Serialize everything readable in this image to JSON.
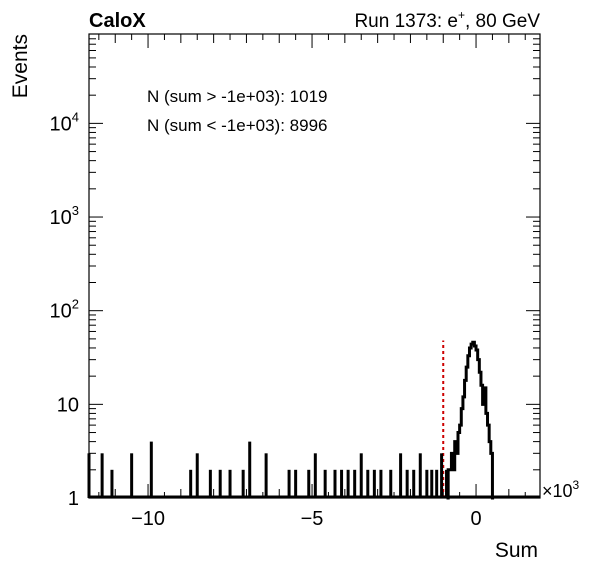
{
  "chart_data": {
    "type": "histogram",
    "title_left": "CaloX",
    "title_right_prefix": "Run 1373: e",
    "title_right_sup": "+",
    "title_right_suffix": ", 80 GeV",
    "xlabel": "Sum",
    "ylabel": "Events",
    "x_multiplier": "×10",
    "x_multiplier_exp": "3",
    "xlim": [
      -11.8,
      1.95
    ],
    "ylim_log": [
      1,
      90000
    ],
    "y_scale": "log",
    "x_ticks": [
      {
        "value": -10,
        "label": "−10"
      },
      {
        "value": -5,
        "label": "−5"
      },
      {
        "value": 0,
        "label": "0"
      }
    ],
    "y_ticks": [
      {
        "value": 1,
        "base": "1",
        "exp": ""
      },
      {
        "value": 10,
        "base": "10",
        "exp": ""
      },
      {
        "value": 100,
        "base": "10",
        "exp": "2"
      },
      {
        "value": 1000,
        "base": "10",
        "exp": "3"
      },
      {
        "value": 10000,
        "base": "10",
        "exp": "4"
      }
    ],
    "annotations": [
      "N (sum > -1e+03): 1019",
      "N (sum < -1e+03): 8996"
    ],
    "cut_line": {
      "x": -1.0,
      "y_top": 48,
      "color": "#cc0000",
      "style": "dashed"
    },
    "line_color": "#000000",
    "spikes": [
      {
        "x": -11.8,
        "y": 3
      },
      {
        "x": -11.4,
        "y": 3
      },
      {
        "x": -11.1,
        "y": 2
      },
      {
        "x": -10.5,
        "y": 3
      },
      {
        "x": -9.9,
        "y": 4
      },
      {
        "x": -8.7,
        "y": 2
      },
      {
        "x": -8.5,
        "y": 3
      },
      {
        "x": -8.1,
        "y": 2
      },
      {
        "x": -7.8,
        "y": 2
      },
      {
        "x": -7.5,
        "y": 2
      },
      {
        "x": -7.1,
        "y": 2
      },
      {
        "x": -6.9,
        "y": 4
      },
      {
        "x": -6.4,
        "y": 3
      },
      {
        "x": -5.7,
        "y": 2
      },
      {
        "x": -5.5,
        "y": 2
      },
      {
        "x": -5.1,
        "y": 2
      },
      {
        "x": -4.9,
        "y": 3
      },
      {
        "x": -4.6,
        "y": 2
      },
      {
        "x": -4.3,
        "y": 2
      },
      {
        "x": -4.1,
        "y": 2
      },
      {
        "x": -3.9,
        "y": 2
      },
      {
        "x": -3.7,
        "y": 2
      },
      {
        "x": -3.5,
        "y": 3
      },
      {
        "x": -3.3,
        "y": 2
      },
      {
        "x": -3.1,
        "y": 2
      },
      {
        "x": -2.9,
        "y": 2
      },
      {
        "x": -2.6,
        "y": 2
      },
      {
        "x": -2.3,
        "y": 3
      },
      {
        "x": -2.1,
        "y": 2
      },
      {
        "x": -1.9,
        "y": 2
      },
      {
        "x": -1.7,
        "y": 3
      },
      {
        "x": -1.5,
        "y": 2
      },
      {
        "x": -1.35,
        "y": 2
      },
      {
        "x": -1.2,
        "y": 2
      },
      {
        "x": -1.05,
        "y": 3
      },
      {
        "x": -0.9,
        "y": 2
      }
    ],
    "peak": [
      {
        "x": -0.9,
        "y": 1
      },
      {
        "x": -0.85,
        "y": 2
      },
      {
        "x": -0.8,
        "y": 2
      },
      {
        "x": -0.75,
        "y": 3
      },
      {
        "x": -0.7,
        "y": 2
      },
      {
        "x": -0.65,
        "y": 4
      },
      {
        "x": -0.6,
        "y": 3
      },
      {
        "x": -0.55,
        "y": 5
      },
      {
        "x": -0.5,
        "y": 6
      },
      {
        "x": -0.45,
        "y": 9
      },
      {
        "x": -0.4,
        "y": 12
      },
      {
        "x": -0.35,
        "y": 18
      },
      {
        "x": -0.3,
        "y": 25
      },
      {
        "x": -0.25,
        "y": 33
      },
      {
        "x": -0.2,
        "y": 40
      },
      {
        "x": -0.15,
        "y": 44
      },
      {
        "x": -0.1,
        "y": 46
      },
      {
        "x": -0.05,
        "y": 42
      },
      {
        "x": 0.0,
        "y": 38
      },
      {
        "x": 0.05,
        "y": 30
      },
      {
        "x": 0.1,
        "y": 22
      },
      {
        "x": 0.15,
        "y": 16
      },
      {
        "x": 0.2,
        "y": 10
      },
      {
        "x": 0.25,
        "y": 15
      },
      {
        "x": 0.3,
        "y": 8
      },
      {
        "x": 0.35,
        "y": 6
      },
      {
        "x": 0.4,
        "y": 4
      },
      {
        "x": 0.45,
        "y": 3
      },
      {
        "x": 0.5,
        "y": 1
      }
    ]
  }
}
